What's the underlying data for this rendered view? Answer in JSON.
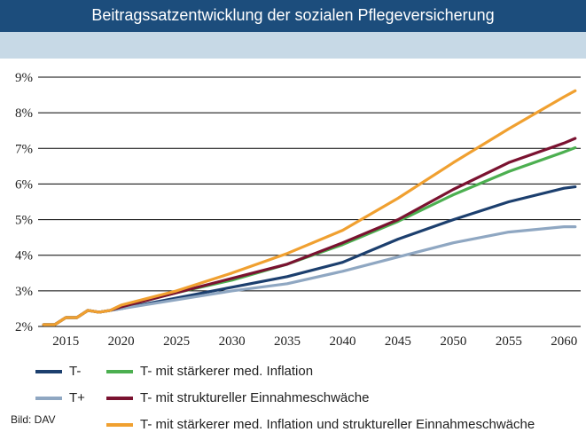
{
  "header": {
    "title": "Beitragssatzentwicklung der sozialen Pflegeversicherung"
  },
  "source": "Bild: DAV",
  "chart_data": {
    "type": "line",
    "title": "Beitragssatzentwicklung der sozialen Pflegeversicherung",
    "xlabel": "",
    "ylabel": "",
    "xlim": [
      2012.5,
      2061.5
    ],
    "ylim": [
      2,
      9
    ],
    "grid": true,
    "x": [
      2013,
      2014,
      2015,
      2016,
      2017,
      2018,
      2019,
      2020,
      2025,
      2030,
      2035,
      2040,
      2045,
      2050,
      2055,
      2060,
      2061
    ],
    "x_ticks": [
      2015,
      2020,
      2025,
      2030,
      2035,
      2040,
      2045,
      2050,
      2055,
      2060
    ],
    "x_tick_labels": [
      "2015",
      "2020",
      "2025",
      "2030",
      "2035",
      "2040",
      "2045",
      "2050",
      "2055",
      "2060"
    ],
    "y_ticks": [
      2,
      3,
      4,
      5,
      6,
      7,
      8,
      9
    ],
    "y_tick_labels": [
      "2%",
      "3%",
      "4%",
      "5%",
      "6%",
      "7%",
      "8%",
      "9%"
    ],
    "series": [
      {
        "name": "T-",
        "color": "#1c3f6e",
        "values": [
          2.05,
          2.05,
          2.25,
          2.25,
          2.45,
          2.4,
          2.45,
          2.5,
          2.8,
          3.1,
          3.4,
          3.8,
          4.45,
          5.0,
          5.5,
          5.88,
          5.92
        ]
      },
      {
        "name": "T+",
        "color": "#8fa7c2",
        "values": [
          2.05,
          2.05,
          2.25,
          2.25,
          2.45,
          2.4,
          2.45,
          2.5,
          2.75,
          3.0,
          3.2,
          3.55,
          3.95,
          4.35,
          4.65,
          4.8,
          4.8
        ]
      },
      {
        "name": "T- mit stärkerer med. Inflation",
        "color": "#4caf50",
        "values": [
          2.05,
          2.05,
          2.25,
          2.25,
          2.45,
          2.4,
          2.45,
          2.55,
          2.95,
          3.3,
          3.75,
          4.3,
          4.95,
          5.7,
          6.35,
          6.9,
          7.02
        ]
      },
      {
        "name": "T- mit struktureller Einnahmeschwäche",
        "color": "#7a1230",
        "values": [
          2.05,
          2.05,
          2.25,
          2.25,
          2.45,
          2.4,
          2.45,
          2.55,
          2.95,
          3.35,
          3.75,
          4.35,
          5.0,
          5.85,
          6.6,
          7.15,
          7.28
        ]
      },
      {
        "name": "T- mit stärkerer med. Inflation und struktureller Einnahmeschwäche",
        "color": "#f0a030",
        "values": [
          2.05,
          2.05,
          2.25,
          2.25,
          2.45,
          2.4,
          2.45,
          2.6,
          3.0,
          3.5,
          4.05,
          4.7,
          5.6,
          6.6,
          7.55,
          8.45,
          8.62
        ]
      }
    ]
  }
}
